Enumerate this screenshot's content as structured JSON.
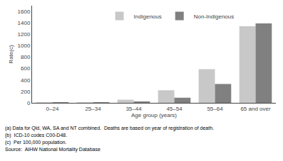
{
  "chart_data": {
    "type": "bar",
    "categories": [
      "0–24",
      "25–34",
      "35–44",
      "45–54",
      "55–64",
      "65 and over"
    ],
    "series": [
      {
        "name": "Indigenous",
        "color": "#c8c8c8",
        "values": [
          5,
          5,
          55,
          220,
          590,
          1340
        ]
      },
      {
        "name": "Non-Indigenous",
        "color": "#808080",
        "values": [
          3,
          8,
          25,
          90,
          330,
          1390
        ]
      }
    ],
    "xlabel": "Age group (years)",
    "ylabel": "Rate(c)",
    "ylim": [
      0,
      1700
    ],
    "yticks": [
      0,
      200,
      400,
      600,
      800,
      1000,
      1200,
      1400,
      1600
    ],
    "grid": false,
    "legend": "top",
    "annotations": [
      "(a) Data for Qld, WA, SA and NT combined.  Deaths are based on year of registration of death.",
      "(b)  ICD-10 codes C00-D48.",
      "(c)  Per 100,000 population.",
      "Source:  AIHW National Mortality Database"
    ]
  }
}
